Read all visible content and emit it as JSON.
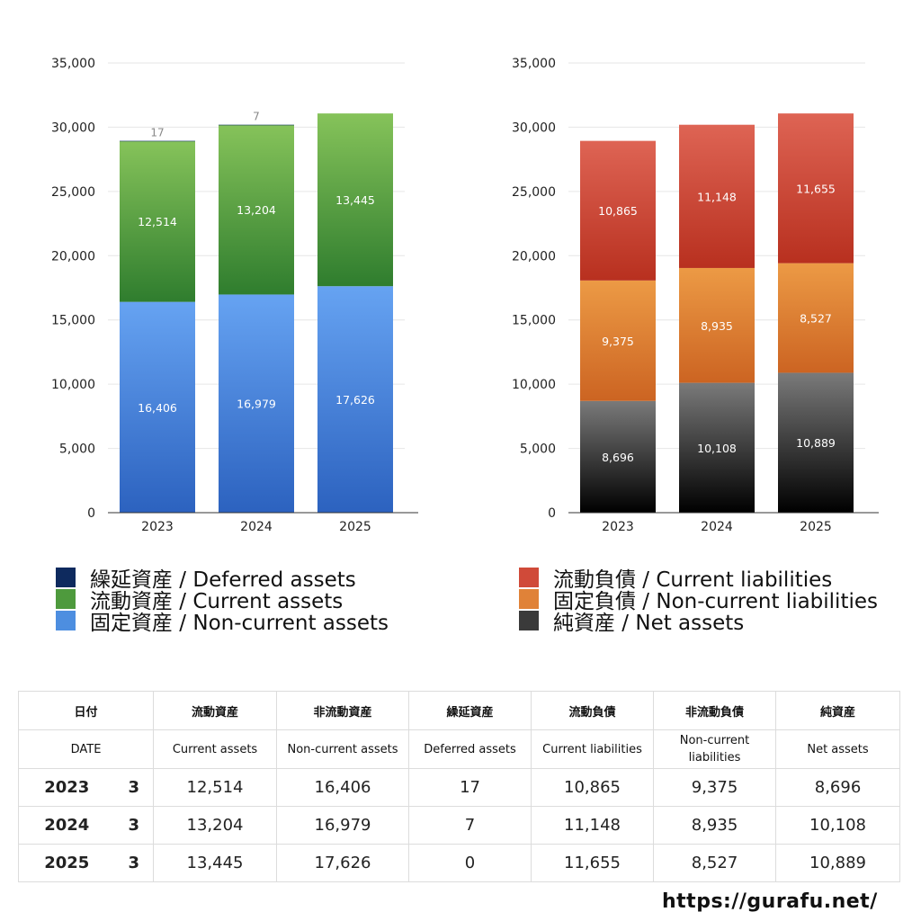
{
  "chart_data": [
    {
      "type": "bar",
      "stacked": true,
      "categories": [
        "2023",
        "2024",
        "2025"
      ],
      "ylim": [
        0,
        35000
      ],
      "yticks": [
        "0",
        "5,000",
        "10,000",
        "15,000",
        "20,000",
        "25,000",
        "30,000",
        "35,000"
      ],
      "grid": true,
      "legend_position": "bottom",
      "series": [
        {
          "name": "固定資産 / Non-current assets",
          "values": [
            16406,
            16979,
            17626
          ],
          "labels": [
            "16,406",
            "16,979",
            "17,626"
          ],
          "color_top": "#66a3f2",
          "color_bottom": "#2c62bf"
        },
        {
          "name": "流動資産 / Current assets",
          "values": [
            12514,
            13204,
            13445
          ],
          "labels": [
            "12,514",
            "13,204",
            "13,445"
          ],
          "color_top": "#86c35a",
          "color_bottom": "#2f7d2e"
        },
        {
          "name": "繰延資産 / Deferred assets",
          "values": [
            17,
            7,
            0
          ],
          "labels": [
            "17",
            "7",
            ""
          ],
          "color_top": "#1c3d78",
          "color_bottom": "#0e2a5e"
        }
      ]
    },
    {
      "type": "bar",
      "stacked": true,
      "categories": [
        "2023",
        "2024",
        "2025"
      ],
      "ylim": [
        0,
        35000
      ],
      "yticks": [
        "0",
        "5,000",
        "10,000",
        "15,000",
        "20,000",
        "25,000",
        "30,000",
        "35,000"
      ],
      "grid": true,
      "legend_position": "bottom",
      "series": [
        {
          "name": "純資産 / Net assets",
          "values": [
            8696,
            10108,
            10889
          ],
          "labels": [
            "8,696",
            "10,108",
            "10,889"
          ],
          "color_top": "#7a7a7a",
          "color_bottom": "#000000"
        },
        {
          "name": "固定負債 / Non-current liabilities",
          "values": [
            9375,
            8935,
            8527
          ],
          "labels": [
            "9,375",
            "8,935",
            "8,527"
          ],
          "color_top": "#ec9a45",
          "color_bottom": "#cc6422"
        },
        {
          "name": "流動負債 / Current liabilities",
          "values": [
            10865,
            11148,
            11655
          ],
          "labels": [
            "10,865",
            "11,148",
            "11,655"
          ],
          "color_top": "#de6454",
          "color_bottom": "#b8301f"
        }
      ]
    }
  ],
  "legend_left": [
    {
      "label": "繰延資産 / Deferred assets",
      "color": "#0e2a5e"
    },
    {
      "label": "流動資産 / Current assets",
      "color": "#4e9a3d"
    },
    {
      "label": "固定資産 / Non-current assets",
      "color": "#4d8ee0"
    }
  ],
  "legend_right": [
    {
      "label": "流動負債 / Current liabilities",
      "color": "#d04a39"
    },
    {
      "label": "固定負債 / Non-current liabilities",
      "color": "#e08238"
    },
    {
      "label": "純資産 / Net assets",
      "color": "#3a3a3a"
    }
  ],
  "table": {
    "header_jp": [
      "日付",
      "流動資産",
      "非流動資産",
      "繰延資産",
      "流動負債",
      "非流動負債",
      "純資産"
    ],
    "header_en": [
      "DATE",
      "Current assets",
      "Non-current assets",
      "Deferred assets",
      "Current liabilities",
      "Non-current liabilities",
      "Net assets"
    ],
    "rows": [
      {
        "year": "2023",
        "month": "3",
        "values": [
          "12,514",
          "16,406",
          "17",
          "10,865",
          "9,375",
          "8,696"
        ]
      },
      {
        "year": "2024",
        "month": "3",
        "values": [
          "13,204",
          "16,979",
          "7",
          "11,148",
          "8,935",
          "10,108"
        ]
      },
      {
        "year": "2025",
        "month": "3",
        "values": [
          "13,445",
          "17,626",
          "0",
          "11,655",
          "8,527",
          "10,889"
        ]
      }
    ]
  },
  "watermark": "https://gurafu.net/"
}
